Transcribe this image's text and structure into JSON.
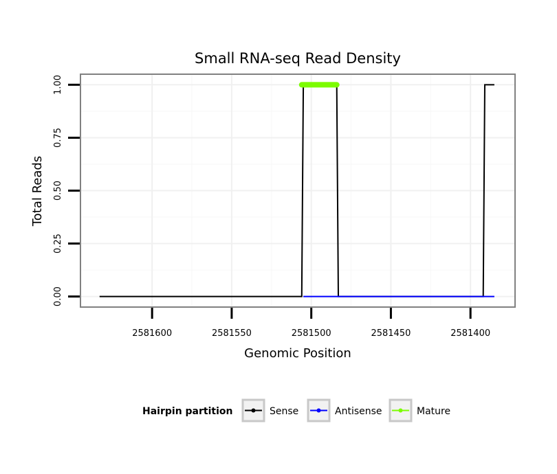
{
  "chart_data": {
    "type": "line",
    "title": "Small RNA-seq Read Density",
    "xlabel": "Genomic Position",
    "ylabel": "Total Reads",
    "xlim": [
      2581645,
      2581372
    ],
    "x_reversed": true,
    "ylim": [
      -0.05,
      1.05
    ],
    "xticks": [
      2581600,
      2581550,
      2581500,
      2581450,
      2581400
    ],
    "xtick_labels": [
      "2581600",
      "2581550",
      "2581500",
      "2581450",
      "2581400"
    ],
    "yticks": [
      0,
      0.25,
      0.5,
      0.75,
      1
    ],
    "ytick_labels": [
      "0.00",
      "0.25",
      "0.50",
      "0.75",
      "1.00"
    ],
    "grid": true,
    "legend": {
      "title": "Hairpin partition",
      "position": "bottom",
      "entries": [
        "Sense",
        "Antisense",
        "Mature"
      ]
    },
    "series": [
      {
        "name": "Sense",
        "color": "#000000",
        "x": [
          2581633,
          2581506,
          2581505,
          2581484,
          2581483,
          2581392,
          2581391,
          2581385
        ],
        "y": [
          0,
          0,
          1,
          1,
          0,
          0,
          1,
          1
        ]
      },
      {
        "name": "Antisense",
        "color": "#0000ff",
        "x": [
          2581505,
          2581483,
          2581392,
          2581385
        ],
        "y": [
          0,
          0,
          0,
          0
        ]
      },
      {
        "name": "Mature",
        "color": "#7cfc00",
        "x": [
          2581506,
          2581484
        ],
        "y": [
          1,
          1
        ]
      }
    ]
  }
}
